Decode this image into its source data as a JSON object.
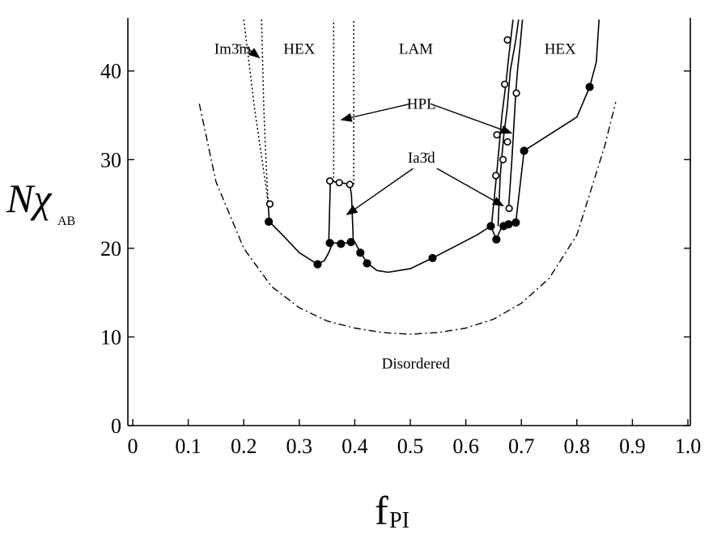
{
  "chart_data": {
    "type": "line",
    "title": "",
    "xlabel": {
      "main": "f",
      "sub": "PI"
    },
    "ylabel": {
      "main": "Nχ",
      "sub": "AB"
    },
    "xlim": [
      0,
      1.0
    ],
    "ylim": [
      0,
      46
    ],
    "x_ticks": [
      "0",
      "0.1",
      "0.2",
      "0.3",
      "0.4",
      "0.5",
      "0.6",
      "0.7",
      "0.8",
      "0.9",
      "1.0"
    ],
    "y_ticks": [
      "0",
      "10",
      "20",
      "30",
      "40"
    ],
    "grid": false,
    "regions": [
      {
        "label": "Im3̄m",
        "x": 0.18,
        "y": 42.5
      },
      {
        "label": "HEX",
        "x": 0.3,
        "y": 42.5
      },
      {
        "label": "LAM",
        "x": 0.51,
        "y": 42.5
      },
      {
        "label": "HEX",
        "x": 0.77,
        "y": 42.5
      },
      {
        "label": "HPL",
        "x": 0.52,
        "y": 36.3
      },
      {
        "label": "Ia3̄d",
        "x": 0.52,
        "y": 30.2
      },
      {
        "label": "Disordered",
        "x": 0.51,
        "y": 7
      }
    ],
    "series": [
      {
        "style": "dash-dot",
        "role": "spinodal",
        "x": [
          0.12,
          0.15,
          0.2,
          0.25,
          0.3,
          0.35,
          0.4,
          0.45,
          0.5,
          0.55,
          0.6,
          0.65,
          0.7,
          0.75,
          0.8,
          0.85,
          0.87
        ],
        "y": [
          36.3,
          27.5,
          20.0,
          15.7,
          13.3,
          11.8,
          11.0,
          10.5,
          10.3,
          10.5,
          11.0,
          12.0,
          13.8,
          16.6,
          21.5,
          31.5,
          36.5
        ]
      },
      {
        "style": "dotted",
        "role": "ODT-left",
        "x": [
          0.2,
          0.22,
          0.24,
          0.244
        ],
        "y": [
          45.8,
          35.5,
          27.0,
          25.0
        ]
      },
      {
        "style": "dotted",
        "role": "Im3m-HEX",
        "x": [
          0.232,
          0.236,
          0.24,
          0.244
        ],
        "y": [
          45.8,
          36.0,
          30.0,
          25.0
        ]
      },
      {
        "style": "solid",
        "role": "ODT-main",
        "x": [
          0.244,
          0.246,
          0.27,
          0.3,
          0.333,
          0.345,
          0.353,
          0.36,
          0.375,
          0.39,
          0.4,
          0.41,
          0.423,
          0.44,
          0.46,
          0.5,
          0.54,
          0.58,
          0.62,
          0.645,
          0.655,
          0.665,
          0.675,
          0.685,
          0.69,
          0.705,
          0.75,
          0.8,
          0.823,
          0.835,
          0.84
        ],
        "y": [
          25.0,
          23.0,
          21.5,
          19.5,
          18.2,
          18.6,
          19.5,
          20.6,
          20.6,
          20.6,
          20.7,
          19.5,
          18.3,
          17.5,
          17.3,
          17.7,
          18.9,
          20.2,
          21.5,
          22.5,
          21.0,
          22.5,
          22.5,
          22.8,
          22.9,
          31.0,
          32.8,
          34.8,
          38.2,
          41.0,
          45.8
        ]
      },
      {
        "style": "solid",
        "role": "HEX-HPL-left",
        "x": [
          0.353,
          0.356,
          0.359,
          0.362
        ],
        "y": [
          20.6,
          27.5,
          27.6,
          27.5
        ]
      },
      {
        "style": "solid",
        "role": "HPL-top-left",
        "x": [
          0.362,
          0.376,
          0.391
        ],
        "y": [
          27.5,
          27.4,
          27.2
        ]
      },
      {
        "style": "solid",
        "role": "HPL-LAM",
        "x": [
          0.391,
          0.394,
          0.397,
          0.397
        ],
        "y": [
          27.2,
          26.0,
          21.5,
          20.7
        ]
      },
      {
        "style": "dotted",
        "role": "HPL-left-ext",
        "x": [
          0.362,
          0.362
        ],
        "y": [
          27.5,
          45.8
        ]
      },
      {
        "style": "dotted",
        "role": "HPL-right-ext",
        "x": [
          0.398,
          0.398
        ],
        "y": [
          27.2,
          45.8
        ]
      },
      {
        "style": "solid",
        "role": "HPL-right",
        "x": [
          0.646,
          0.655,
          0.665,
          0.672,
          0.678,
          0.685
        ],
        "y": [
          22.5,
          28.0,
          35.0,
          38.5,
          42.0,
          45.8
        ]
      },
      {
        "style": "solid",
        "role": "HPL-right2",
        "x": [
          0.658,
          0.662,
          0.668,
          0.675,
          0.68,
          0.69,
          0.695
        ],
        "y": [
          22.5,
          28.2,
          32.5,
          36.0,
          40.0,
          43.5,
          45.8
        ]
      },
      {
        "style": "solid",
        "role": "Ia3d-HEX",
        "x": [
          0.677,
          0.683,
          0.69,
          0.693,
          0.698,
          0.702
        ],
        "y": [
          24.5,
          30.0,
          37.5,
          40.0,
          43.0,
          45.8
        ]
      }
    ],
    "markers": {
      "open": [
        {
          "x": 0.247,
          "y": 25.0
        },
        {
          "x": 0.355,
          "y": 27.6
        },
        {
          "x": 0.372,
          "y": 27.4
        },
        {
          "x": 0.391,
          "y": 27.2
        },
        {
          "x": 0.654,
          "y": 28.2
        },
        {
          "x": 0.656,
          "y": 32.8
        },
        {
          "x": 0.667,
          "y": 30.0
        },
        {
          "x": 0.67,
          "y": 38.5
        },
        {
          "x": 0.675,
          "y": 43.5
        },
        {
          "x": 0.675,
          "y": 32.0
        },
        {
          "x": 0.678,
          "y": 24.5
        },
        {
          "x": 0.691,
          "y": 37.5
        }
      ],
      "filled": [
        {
          "x": 0.245,
          "y": 23.0
        },
        {
          "x": 0.333,
          "y": 18.2
        },
        {
          "x": 0.355,
          "y": 20.6
        },
        {
          "x": 0.375,
          "y": 20.5
        },
        {
          "x": 0.393,
          "y": 20.7
        },
        {
          "x": 0.41,
          "y": 19.5
        },
        {
          "x": 0.422,
          "y": 18.3
        },
        {
          "x": 0.54,
          "y": 18.9
        },
        {
          "x": 0.645,
          "y": 22.5
        },
        {
          "x": 0.655,
          "y": 21.0
        },
        {
          "x": 0.668,
          "y": 22.5
        },
        {
          "x": 0.677,
          "y": 22.7
        },
        {
          "x": 0.69,
          "y": 22.9
        },
        {
          "x": 0.705,
          "y": 31.0
        },
        {
          "x": 0.823,
          "y": 38.2
        }
      ]
    },
    "arrows": [
      {
        "from": [
          0.208,
          42.5
        ],
        "to": [
          0.228,
          41.5
        ]
      },
      {
        "from": [
          0.5,
          36.3
        ],
        "to": [
          0.376,
          34.5
        ]
      },
      {
        "from": [
          0.536,
          36.3
        ],
        "to": [
          0.682,
          33.0
        ]
      },
      {
        "from": [
          0.505,
          29.0
        ],
        "to": [
          0.386,
          23.8
        ]
      },
      {
        "from": [
          0.548,
          29.0
        ],
        "to": [
          0.667,
          24.8
        ]
      }
    ]
  }
}
